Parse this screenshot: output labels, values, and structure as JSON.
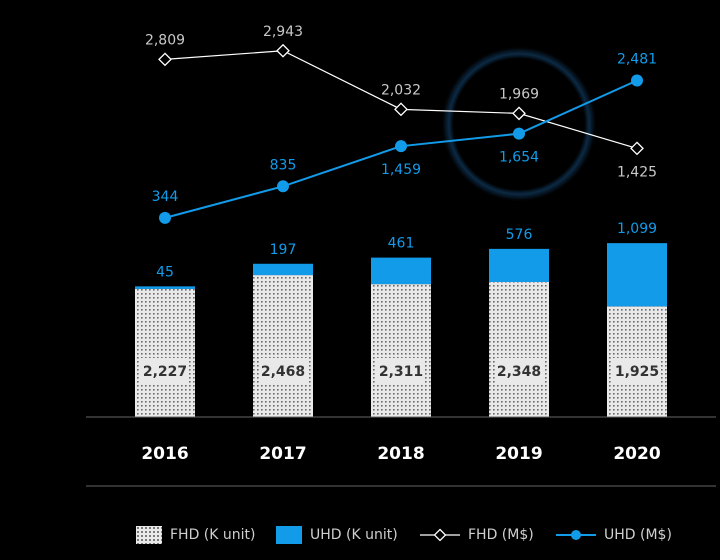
{
  "colors": {
    "background": "#000000",
    "uhd": "#129be9",
    "fhd_bar": "#e9e9e9",
    "fhd_dots": "#6a6a6a",
    "fhd_line": "#ffffff",
    "fhd_label": "#c8c8c8",
    "axis": "#666666"
  },
  "legend": {
    "fhd_k": "FHD (K unit)",
    "uhd_k": "UHD (K unit)",
    "fhd_m": "FHD (M$)",
    "uhd_m": "UHD (M$)"
  },
  "chart_data": {
    "type": "bar",
    "title": "",
    "categories": [
      "2016",
      "2017",
      "2018",
      "2019",
      "2020"
    ],
    "bar_series": [
      {
        "name": "FHD (K unit)",
        "values": [
          2227,
          2468,
          2311,
          2348,
          1925
        ],
        "labels": [
          "2,227",
          "2,468",
          "2,311",
          "2,348",
          "1,925"
        ]
      },
      {
        "name": "UHD (K unit)",
        "values": [
          45,
          197,
          461,
          576,
          1099
        ],
        "labels": [
          "45",
          "197",
          "461",
          "576",
          "1,099"
        ]
      }
    ],
    "line_series": [
      {
        "name": "FHD (M$)",
        "marker": "diamond",
        "values": [
          2809,
          2943,
          2032,
          1969,
          1425
        ],
        "labels": [
          "2,809",
          "2,943",
          "2,032",
          "1,969",
          "1,425"
        ]
      },
      {
        "name": "UHD (M$)",
        "marker": "circle",
        "values": [
          344,
          835,
          1459,
          1654,
          2481
        ],
        "labels": [
          "344",
          "835",
          "1,459",
          "1,654",
          "2,481"
        ]
      }
    ],
    "stacked": true,
    "legend_position": "bottom",
    "grid": false,
    "xlabel": "",
    "ylabel": ""
  }
}
